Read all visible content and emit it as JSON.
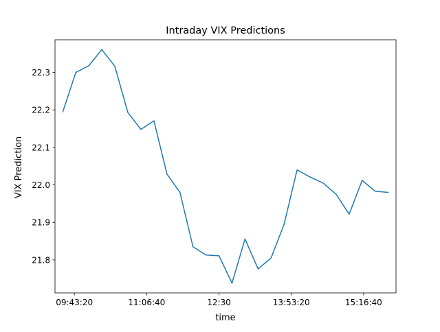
{
  "chart_data": {
    "type": "line",
    "title": "Intraday VIX Predictions",
    "xlabel": "time",
    "ylabel": "VIX Prediction",
    "x": [
      "09:30:00",
      "09:45:00",
      "10:00:00",
      "10:15:00",
      "10:30:00",
      "10:45:00",
      "11:00:00",
      "11:15:00",
      "11:30:00",
      "11:45:00",
      "12:00:00",
      "12:15:00",
      "12:30:00",
      "12:45:00",
      "13:00:00",
      "13:15:00",
      "13:30:00",
      "13:45:00",
      "14:00:00",
      "14:15:00",
      "14:30:00",
      "14:45:00",
      "15:00:00",
      "15:15:00",
      "15:30:00",
      "15:45:00"
    ],
    "series": [
      {
        "color": "#1f77b4",
        "values": [
          22.195,
          22.3,
          22.318,
          22.361,
          22.316,
          22.193,
          22.148,
          22.171,
          22.029,
          21.98,
          21.835,
          21.813,
          21.811,
          21.738,
          21.856,
          21.776,
          21.805,
          21.895,
          22.04,
          22.021,
          22.005,
          21.975,
          21.922,
          22.012,
          21.983,
          21.98
        ]
      }
    ],
    "xlim": [
      "09:21:00",
      "15:54:00"
    ],
    "ylim": [
      21.712,
      22.387
    ],
    "x_ticks": [
      "09:43:20",
      "11:06:40",
      "12:30",
      "13:53:20",
      "15:16:40"
    ],
    "y_ticks": [
      "21.8",
      "21.9",
      "22.0",
      "22.1",
      "22.2",
      "22.3"
    ],
    "grid": false
  }
}
